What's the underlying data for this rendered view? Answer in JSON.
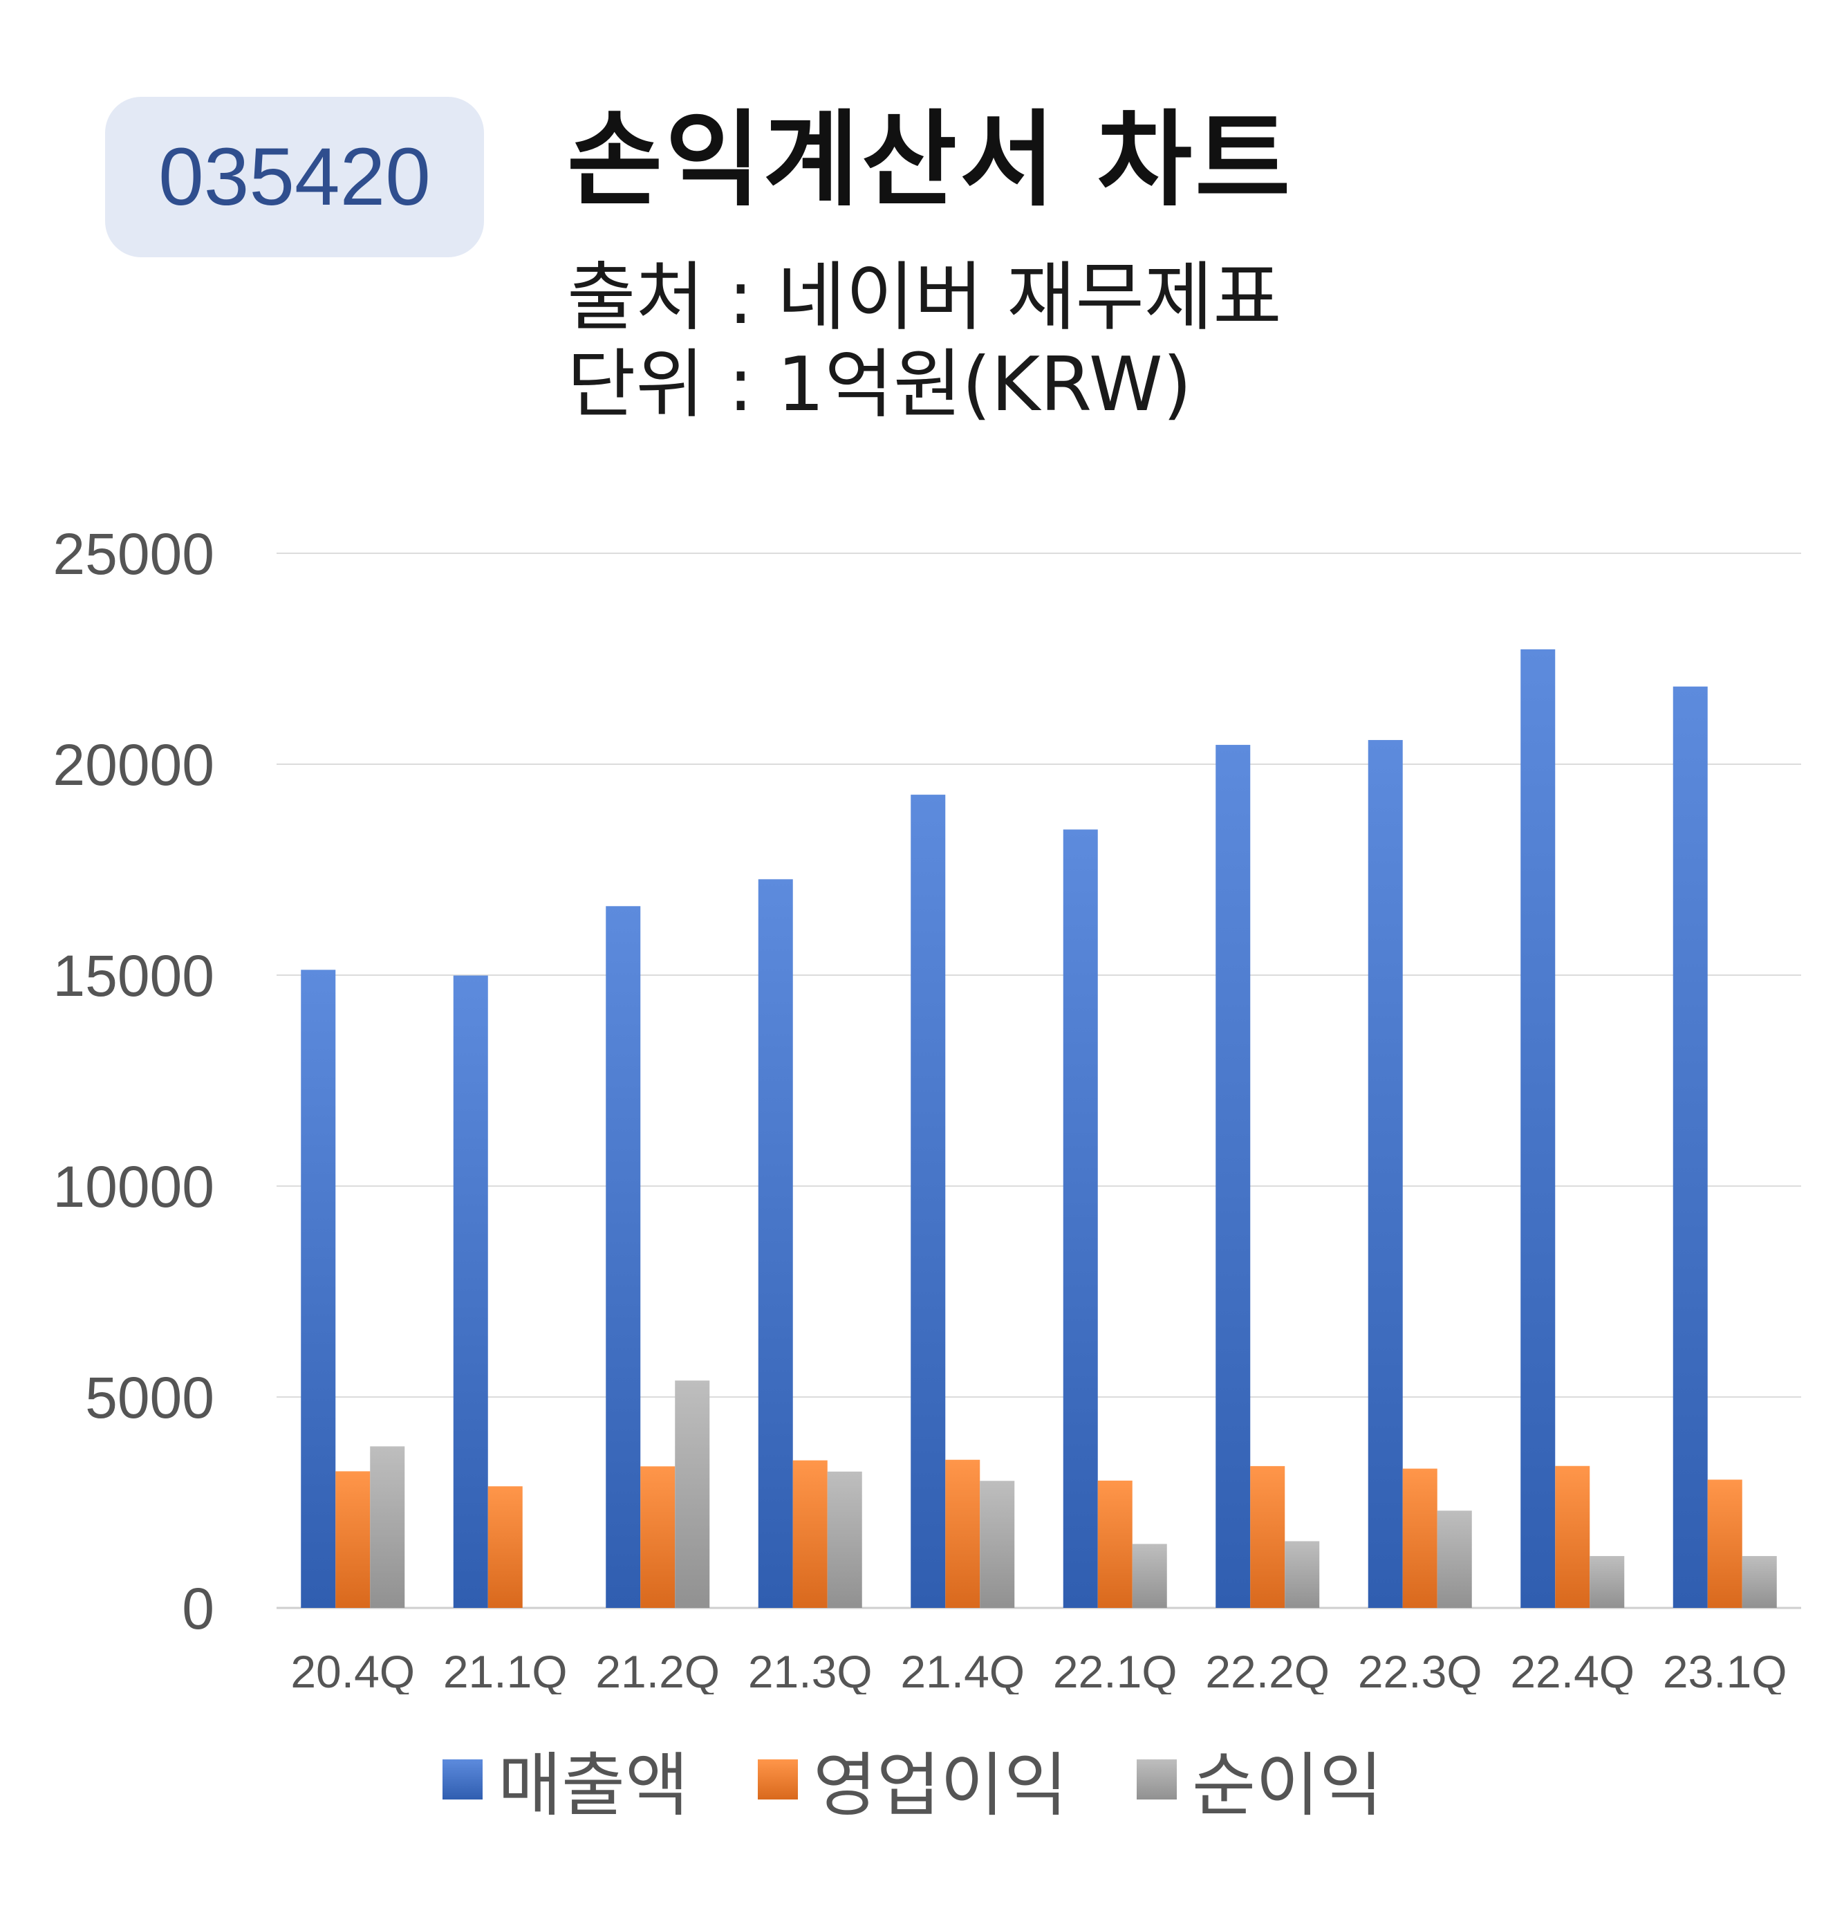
{
  "header": {
    "code": "035420",
    "title": "손익계산서 차트",
    "source": "출처 : 네이버 재무제표",
    "unit": "단위 : 1억원(KRW)"
  },
  "colors": {
    "revenue": "#4472c4",
    "operating_profit": "#ed7d31",
    "net_income": "#a5a5a5",
    "badge_bg": "#e3e9f5",
    "badge_text": "#2f4e8e"
  },
  "chart_data": {
    "type": "bar",
    "categories": [
      "20.4Q",
      "21.1Q",
      "21.2Q",
      "21.3Q",
      "21.4Q",
      "22.1Q",
      "22.2Q",
      "22.3Q",
      "22.4Q",
      "23.1Q"
    ],
    "series": [
      {
        "name": "매출액",
        "values": [
          15126,
          14991,
          16635,
          17273,
          19277,
          18452,
          20458,
          20573,
          22723,
          21841
        ]
      },
      {
        "name": "영업이익",
        "values": [
          3239,
          2883,
          3356,
          3498,
          3512,
          3018,
          3362,
          3302,
          3365,
          3041
        ]
      },
      {
        "name": "순이익",
        "values": [
          3830,
          null,
          5390,
          3232,
          3012,
          1517,
          1582,
          2306,
          1230,
          1230
        ]
      }
    ],
    "y_ticks": [
      "0",
      "5000",
      "10000",
      "15000",
      "20000",
      "25000"
    ],
    "ylim": [
      0,
      25000
    ],
    "grid": true,
    "legend": "bottom"
  }
}
